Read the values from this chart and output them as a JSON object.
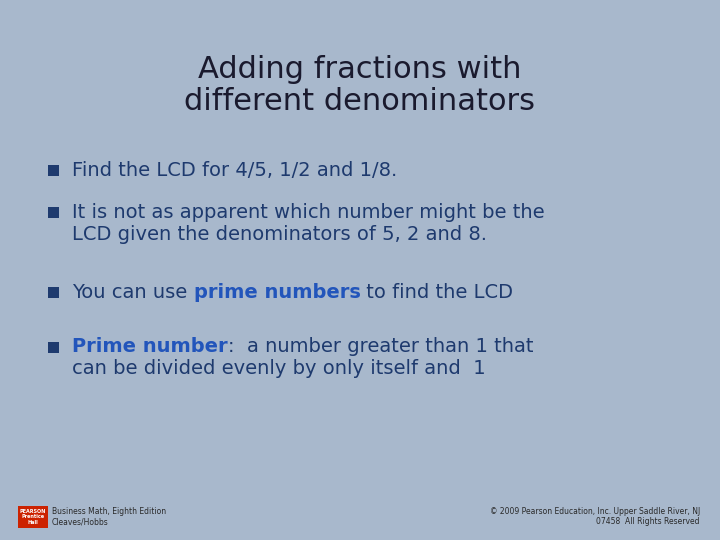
{
  "background_color": "#a8b8cc",
  "title_line1": "Adding fractions with",
  "title_line2": "different denominators",
  "title_fontsize": 22,
  "title_color": "#1a1a2e",
  "bullet_color": "#1e3a6e",
  "bullet_size": 7,
  "text_fontsize": 14,
  "dark_blue": "#1e3a6e",
  "bright_blue": "#2255bb",
  "footer_fontsize": 5.5,
  "footer_color": "#2a2a2a",
  "logo_colors": [
    "#cc0000",
    "#0055aa"
  ],
  "footer_left_line1": "Business Math, Eighth Edition",
  "footer_left_line2": "Cleaves/Hobbs",
  "footer_right_line1": "© 2009 Pearson Education, Inc. Upper Saddle River, NJ",
  "footer_right_line2": "07458  All Rights Reserved"
}
